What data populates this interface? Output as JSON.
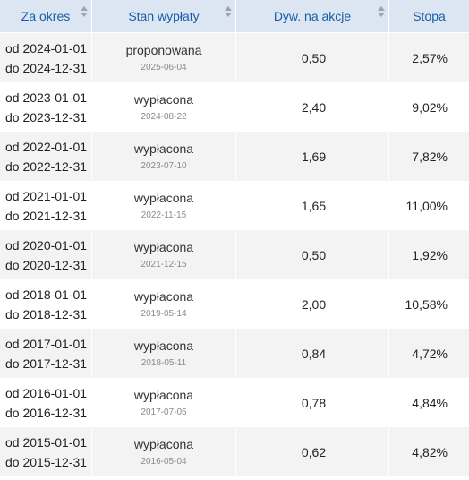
{
  "header": {
    "period": "Za okres",
    "status": "Stan wypłaty",
    "dividend": "Dyw. na akcje",
    "rate": "Stopa"
  },
  "rows": [
    {
      "from": "od 2024-01-01",
      "to": "do 2024-12-31",
      "status": "proponowana",
      "date": "2025-06-04",
      "dividend": "0,50",
      "rate": "2,57%"
    },
    {
      "from": "od 2023-01-01",
      "to": "do 2023-12-31",
      "status": "wypłacona",
      "date": "2024-08-22",
      "dividend": "2,40",
      "rate": "9,02%"
    },
    {
      "from": "od 2022-01-01",
      "to": "do 2022-12-31",
      "status": "wypłacona",
      "date": "2023-07-10",
      "dividend": "1,69",
      "rate": "7,82%"
    },
    {
      "from": "od 2021-01-01",
      "to": "do 2021-12-31",
      "status": "wypłacona",
      "date": "2022-11-15",
      "dividend": "1,65",
      "rate": "11,00%"
    },
    {
      "from": "od 2020-01-01",
      "to": "do 2020-12-31",
      "status": "wypłacona",
      "date": "2021-12-15",
      "dividend": "0,50",
      "rate": "1,92%"
    },
    {
      "from": "od 2018-01-01",
      "to": "do 2018-12-31",
      "status": "wypłacona",
      "date": "2019-05-14",
      "dividend": "2,00",
      "rate": "10,58%"
    },
    {
      "from": "od 2017-01-01",
      "to": "do 2017-12-31",
      "status": "wypłacona",
      "date": "2018-05-11",
      "dividend": "0,84",
      "rate": "4,72%"
    },
    {
      "from": "od 2016-01-01",
      "to": "do 2016-12-31",
      "status": "wypłacona",
      "date": "2017-07-05",
      "dividend": "0,78",
      "rate": "4,84%"
    },
    {
      "from": "od 2015-01-01",
      "to": "do 2015-12-31",
      "status": "wypłacona",
      "date": "2016-05-04",
      "dividend": "0,62",
      "rate": "4,82%"
    }
  ],
  "colors": {
    "header_bg": "#dbe6f2",
    "header_text": "#1a5da8",
    "row_stripe": "#f3f3f3",
    "sort_icon": "#9aa5b1"
  },
  "icons": {
    "sort": "sort-icon"
  }
}
